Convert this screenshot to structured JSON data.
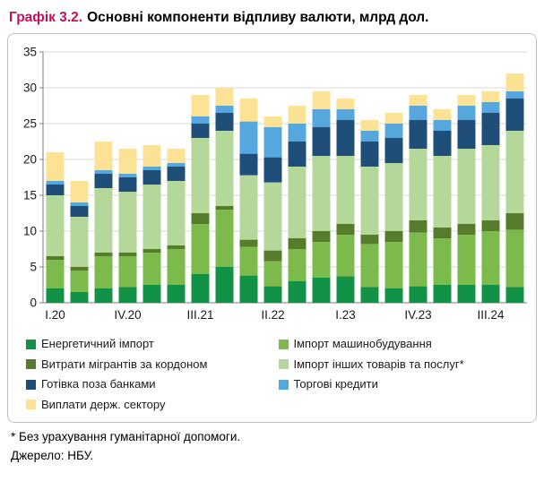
{
  "title": {
    "prefix": "Графік 3.2.",
    "text": "Основні компоненти відпливу валюти, млрд дол."
  },
  "footnote": "* Без урахування гуманітарної допомоги.",
  "source": "Джерело: НБУ.",
  "colors": {
    "title_accent": "#C4105F",
    "grid": "#D9D9D9",
    "axis": "#7F7F7F",
    "border": "#BFBFBF"
  },
  "chart_data": {
    "type": "bar",
    "stacked": true,
    "title": "Основні компоненти відпливу валюти, млрд дол.",
    "xlabel": "",
    "ylabel": "",
    "ylim": [
      0,
      35
    ],
    "ytick_step": 5,
    "grid": true,
    "legend_position": "bottom",
    "categories": [
      "I.20",
      "II.20",
      "III.20",
      "IV.20",
      "I.21",
      "II.21",
      "III.21",
      "IV.21",
      "I.22",
      "II.22",
      "III.22",
      "IV.22",
      "I.23",
      "II.23",
      "III.23",
      "IV.23",
      "I.24",
      "II.24",
      "III.24",
      "IV.24"
    ],
    "tick_indices": [
      0,
      3,
      6,
      9,
      12,
      15,
      18
    ],
    "tick_labels": [
      "I.20",
      "IV.20",
      "III.21",
      "II.22",
      "I.23",
      "IV.23",
      "III.24"
    ],
    "series": [
      {
        "name": "Енергетичний імпорт",
        "color": "#129246",
        "values": [
          2.0,
          1.5,
          2.0,
          2.2,
          2.5,
          2.5,
          4.0,
          5.0,
          3.8,
          2.3,
          3.0,
          3.5,
          3.7,
          2.2,
          2.0,
          2.3,
          2.5,
          2.5,
          2.5,
          2.2
        ]
      },
      {
        "name": "Імпорт машинобудування",
        "color": "#7CBA4B",
        "values": [
          4.0,
          3.0,
          4.5,
          4.3,
          4.5,
          5.0,
          7.0,
          8.0,
          4.0,
          3.5,
          4.5,
          5.0,
          5.8,
          6.0,
          6.5,
          7.5,
          6.5,
          7.0,
          7.5,
          8.0
        ]
      },
      {
        "name": "Витрати мігрантів за кордоном",
        "color": "#577C2B",
        "values": [
          0.5,
          0.5,
          0.5,
          0.5,
          0.5,
          0.5,
          1.5,
          0.5,
          1.0,
          1.5,
          1.5,
          1.5,
          1.5,
          1.3,
          1.5,
          1.7,
          1.5,
          1.5,
          1.5,
          2.3
        ]
      },
      {
        "name": "Імпорт інших товарів та послуг*",
        "color": "#B3D89A",
        "values": [
          8.5,
          7.0,
          9.0,
          8.5,
          9.0,
          9.0,
          10.5,
          10.5,
          9.0,
          9.5,
          10.0,
          10.5,
          9.5,
          9.5,
          9.5,
          10.0,
          10.0,
          10.5,
          10.5,
          11.5
        ]
      },
      {
        "name": "Готівка поза банками",
        "color": "#1F4E79",
        "values": [
          1.5,
          1.5,
          2.0,
          2.0,
          2.0,
          2.0,
          2.0,
          2.5,
          3.0,
          3.5,
          3.5,
          4.0,
          5.0,
          3.5,
          3.5,
          4.0,
          3.5,
          4.0,
          4.5,
          4.5
        ]
      },
      {
        "name": "Торгові кредити",
        "color": "#56A7DE",
        "values": [
          0.5,
          0.5,
          0.5,
          0.5,
          0.5,
          0.5,
          1.0,
          1.0,
          4.5,
          4.2,
          2.5,
          2.5,
          1.5,
          1.5,
          2.0,
          2.0,
          1.5,
          2.0,
          1.5,
          1.0
        ]
      },
      {
        "name": "Виплати держ. сектору",
        "color": "#FBE294",
        "values": [
          4.0,
          3.0,
          4.0,
          3.5,
          3.0,
          2.0,
          3.0,
          2.5,
          3.2,
          1.5,
          2.5,
          2.5,
          1.5,
          1.5,
          1.5,
          1.5,
          1.5,
          1.5,
          1.5,
          2.5
        ]
      }
    ]
  }
}
